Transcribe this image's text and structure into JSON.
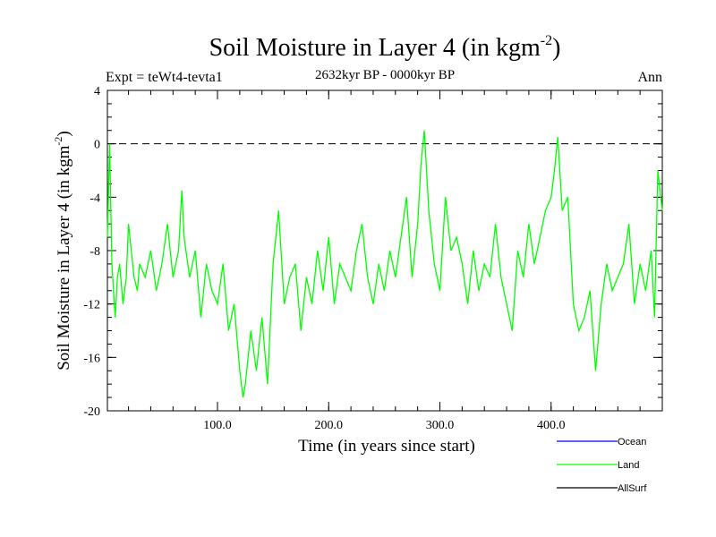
{
  "chart_data": {
    "type": "line",
    "title_main": "Soil Moisture in Layer 4 (in kgm",
    "title_sup": "-2",
    "title_close": ")",
    "subtitle": "2632kyr BP - 0000kyr BP",
    "expt_label": "Expt = teWt4-tevta1",
    "period_label": "Ann",
    "xlabel": "Time (in years since start)",
    "ylabel_main": "Soil Moisture in Layer 4 (in kgm",
    "ylabel_sup": "-2",
    "ylabel_close": ")",
    "xlim": [
      1,
      500
    ],
    "ylim": [
      -20,
      4
    ],
    "xticks": [
      100,
      200,
      300,
      400
    ],
    "xtick_labels": [
      "100.0",
      "200.0",
      "300.0",
      "400.0"
    ],
    "yticks": [
      4,
      0,
      -4,
      -8,
      -12,
      -16,
      -20
    ],
    "ytick_labels": [
      "4",
      "0",
      "-4",
      "-8",
      "-12",
      "-16",
      "-20"
    ],
    "reference_line": 0,
    "legend": [
      {
        "name": "Ocean",
        "color": "#0000ff"
      },
      {
        "name": "Land",
        "color": "#00ff00"
      },
      {
        "name": "AllSurf",
        "color": "#000000"
      }
    ],
    "series": [
      {
        "name": "Land",
        "color": "#00ff00",
        "x": [
          1,
          3,
          5,
          8,
          10,
          12,
          15,
          18,
          20,
          25,
          28,
          30,
          35,
          40,
          45,
          50,
          55,
          60,
          65,
          68,
          70,
          75,
          80,
          85,
          90,
          95,
          100,
          105,
          110,
          115,
          120,
          123,
          125,
          130,
          135,
          140,
          145,
          150,
          155,
          160,
          165,
          170,
          175,
          180,
          185,
          190,
          195,
          200,
          205,
          210,
          215,
          220,
          225,
          230,
          235,
          240,
          245,
          250,
          255,
          260,
          265,
          270,
          275,
          280,
          283,
          286,
          290,
          295,
          300,
          305,
          310,
          315,
          320,
          325,
          330,
          335,
          340,
          345,
          350,
          355,
          360,
          365,
          370,
          375,
          380,
          385,
          390,
          395,
          400,
          403,
          406,
          410,
          415,
          420,
          425,
          430,
          435,
          440,
          445,
          450,
          455,
          460,
          465,
          470,
          475,
          480,
          485,
          490,
          493,
          496,
          500
        ],
        "y": [
          -7,
          0,
          -9,
          -13,
          -10,
          -9,
          -12,
          -10,
          -6,
          -10,
          -11,
          -9,
          -10,
          -8,
          -11,
          -9,
          -6,
          -10,
          -8,
          -3.5,
          -7,
          -10,
          -8,
          -13,
          -9,
          -11,
          -12,
          -9,
          -14,
          -12,
          -17,
          -19,
          -18,
          -14,
          -17,
          -13,
          -18,
          -9,
          -5,
          -12,
          -10,
          -9,
          -14,
          -10,
          -12,
          -8,
          -11,
          -7,
          -12,
          -9,
          -10,
          -11,
          -8,
          -6,
          -10,
          -12,
          -9,
          -11,
          -8,
          -10,
          -7,
          -4,
          -10,
          -6,
          -1.5,
          1,
          -5,
          -9,
          -11,
          -4,
          -8,
          -7,
          -9,
          -12,
          -8,
          -11,
          -9,
          -10,
          -6,
          -10,
          -12,
          -14,
          -8,
          -10,
          -6,
          -9,
          -7,
          -5,
          -4,
          -2,
          0.5,
          -5,
          -4,
          -12,
          -14,
          -13,
          -11,
          -17,
          -12,
          -9,
          -11,
          -10,
          -9,
          -6,
          -12,
          -9,
          -11,
          -8,
          -13,
          -2,
          -5
        ]
      }
    ]
  }
}
